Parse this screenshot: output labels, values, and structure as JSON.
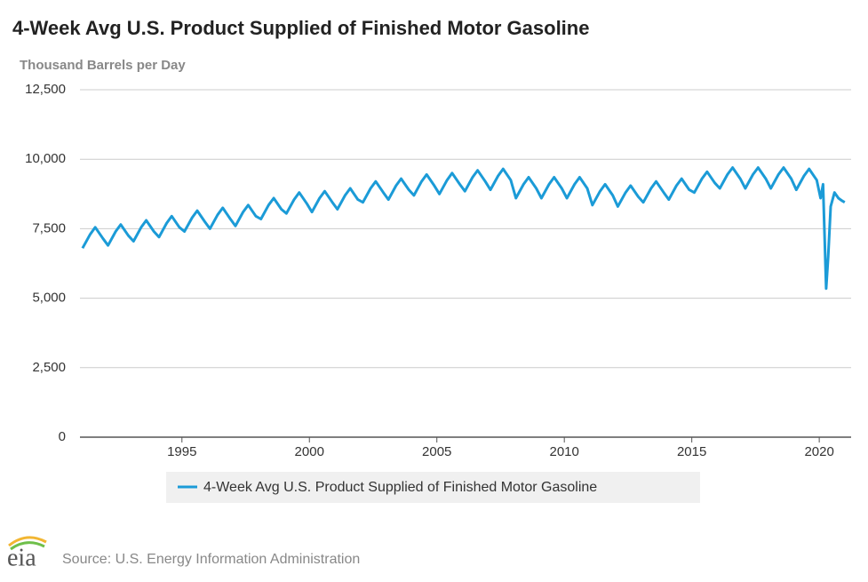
{
  "chart_data": {
    "type": "line",
    "title": "4-Week Avg U.S. Product Supplied of Finished Motor Gasoline",
    "subtitle": "Thousand Barrels per Day",
    "source": "Source: U.S. Energy Information Administration",
    "logo": "eia",
    "x": [
      1991.1,
      1991.4,
      1991.6,
      1991.9,
      1992.1,
      1992.4,
      1992.6,
      1992.9,
      1993.1,
      1993.4,
      1993.6,
      1993.9,
      1994.1,
      1994.4,
      1994.6,
      1994.9,
      1995.1,
      1995.4,
      1995.6,
      1995.9,
      1996.1,
      1996.4,
      1996.6,
      1996.9,
      1997.1,
      1997.4,
      1997.6,
      1997.9,
      1998.1,
      1998.4,
      1998.6,
      1998.9,
      1999.1,
      1999.4,
      1999.6,
      1999.9,
      2000.1,
      2000.4,
      2000.6,
      2000.9,
      2001.1,
      2001.4,
      2001.6,
      2001.9,
      2002.1,
      2002.4,
      2002.6,
      2002.9,
      2003.1,
      2003.4,
      2003.6,
      2003.9,
      2004.1,
      2004.4,
      2004.6,
      2004.9,
      2005.1,
      2005.4,
      2005.6,
      2005.9,
      2006.1,
      2006.4,
      2006.6,
      2006.9,
      2007.1,
      2007.4,
      2007.6,
      2007.9,
      2008.1,
      2008.4,
      2008.6,
      2008.9,
      2009.1,
      2009.4,
      2009.6,
      2009.9,
      2010.1,
      2010.4,
      2010.6,
      2010.9,
      2011.1,
      2011.4,
      2011.6,
      2011.9,
      2012.1,
      2012.4,
      2012.6,
      2012.9,
      2013.1,
      2013.4,
      2013.6,
      2013.9,
      2014.1,
      2014.4,
      2014.6,
      2014.9,
      2015.1,
      2015.4,
      2015.6,
      2015.9,
      2016.1,
      2016.4,
      2016.6,
      2016.9,
      2017.1,
      2017.4,
      2017.6,
      2017.9,
      2018.1,
      2018.4,
      2018.6,
      2018.9,
      2019.1,
      2019.4,
      2019.6,
      2019.9,
      2020.05,
      2020.15,
      2020.27,
      2020.35,
      2020.45,
      2020.6,
      2020.75,
      2020.9,
      2021.0
    ],
    "series": [
      {
        "name": "4-Week Avg U.S. Product Supplied of Finished Motor Gasoline",
        "color": "#1b9bd7",
        "values": [
          6800,
          7300,
          7550,
          7150,
          6900,
          7400,
          7650,
          7250,
          7050,
          7550,
          7800,
          7400,
          7200,
          7700,
          7950,
          7550,
          7400,
          7900,
          8150,
          7750,
          7500,
          8000,
          8250,
          7850,
          7600,
          8100,
          8350,
          7950,
          7850,
          8350,
          8600,
          8200,
          8050,
          8550,
          8800,
          8400,
          8100,
          8600,
          8850,
          8450,
          8200,
          8700,
          8950,
          8550,
          8450,
          8950,
          9200,
          8800,
          8550,
          9050,
          9300,
          8900,
          8700,
          9200,
          9450,
          9050,
          8750,
          9250,
          9500,
          9100,
          8850,
          9350,
          9600,
          9200,
          8900,
          9400,
          9650,
          9250,
          8600,
          9100,
          9350,
          8950,
          8600,
          9100,
          9350,
          8950,
          8600,
          9100,
          9350,
          8950,
          8350,
          8850,
          9100,
          8700,
          8300,
          8800,
          9050,
          8650,
          8450,
          8950,
          9200,
          8800,
          8550,
          9050,
          9300,
          8900,
          8800,
          9300,
          9550,
          9150,
          8950,
          9450,
          9700,
          9300,
          8950,
          9450,
          9700,
          9300,
          8950,
          9450,
          9700,
          9300,
          8900,
          9400,
          9650,
          9250,
          8600,
          9100,
          5350,
          6500,
          8300,
          8800,
          8600,
          8500,
          8450
        ]
      }
    ],
    "xlim": [
      1991,
      2021.25
    ],
    "ylim": [
      0,
      12500
    ],
    "xticks": [
      1995,
      2000,
      2005,
      2010,
      2015,
      2020
    ],
    "yticks": [
      0,
      {
        "value": 2500,
        "label": "2,500"
      },
      {
        "value": 5000,
        "label": "5,000"
      },
      {
        "value": 7500,
        "label": "7,500"
      },
      {
        "value": 10000,
        "label": "10,000"
      },
      {
        "value": 12500,
        "label": "12,500"
      }
    ],
    "grid": true
  }
}
